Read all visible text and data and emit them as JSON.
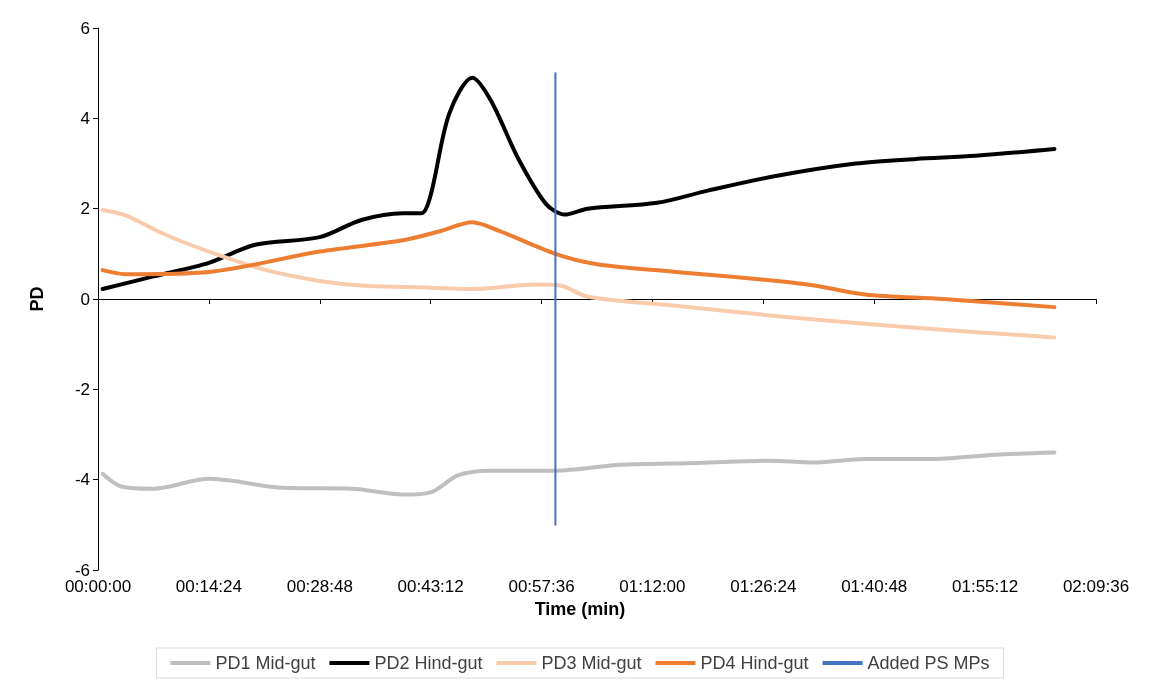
{
  "chart_data": {
    "type": "line",
    "xlabel": "Time (min)",
    "ylabel": "PD",
    "xlim": [
      0,
      2.16
    ],
    "xticks": [
      {
        "value": 0,
        "label": "00:00:00"
      },
      {
        "value": 0.24,
        "label": "00:14:24"
      },
      {
        "value": 0.48,
        "label": "00:28:48"
      },
      {
        "value": 0.72,
        "label": "00:43:12"
      },
      {
        "value": 0.96,
        "label": "00:57:36"
      },
      {
        "value": 1.2,
        "label": "01:12:00"
      },
      {
        "value": 1.44,
        "label": "01:26:24"
      },
      {
        "value": 1.68,
        "label": "01:40:48"
      },
      {
        "value": 1.92,
        "label": "01:55:12"
      },
      {
        "value": 2.16,
        "label": "02:09:36"
      }
    ],
    "ylim": [
      -6,
      6
    ],
    "yticks": [
      -6,
      -4,
      -2,
      0,
      2,
      4,
      6
    ],
    "legend": "bottom",
    "marker": "none",
    "line_style": "solid",
    "series": [
      {
        "name": "PD1 Mid-gut",
        "color": "#bfbfbf",
        "x": [
          0.01,
          0.05,
          0.12,
          0.24,
          0.4,
          0.55,
          0.66,
          0.72,
          0.78,
          0.85,
          0.99,
          1.13,
          1.3,
          1.45,
          1.55,
          1.66,
          1.81,
          1.94,
          2.07
        ],
        "values": [
          -3.87,
          -4.15,
          -4.2,
          -3.98,
          -4.18,
          -4.2,
          -4.33,
          -4.28,
          -3.9,
          -3.8,
          -3.8,
          -3.67,
          -3.63,
          -3.58,
          -3.62,
          -3.54,
          -3.54,
          -3.45,
          -3.4
        ]
      },
      {
        "name": "PD2 Hind-gut",
        "color": "#000000",
        "x": [
          0.01,
          0.12,
          0.24,
          0.34,
          0.48,
          0.57,
          0.66,
          0.7,
          0.72,
          0.76,
          0.81,
          0.85,
          0.91,
          0.97,
          1.01,
          1.06,
          1.21,
          1.32,
          1.47,
          1.64,
          1.77,
          1.9,
          2.07
        ],
        "values": [
          0.22,
          0.5,
          0.8,
          1.2,
          1.37,
          1.75,
          1.9,
          1.9,
          2.3,
          4.1,
          4.9,
          4.4,
          3.1,
          2.1,
          1.87,
          2.0,
          2.13,
          2.4,
          2.73,
          3.0,
          3.1,
          3.17,
          3.32
        ]
      },
      {
        "name": "PD3 Mid-gut",
        "color": "#f8cbad",
        "x": [
          0.01,
          0.06,
          0.14,
          0.24,
          0.36,
          0.48,
          0.57,
          0.72,
          0.81,
          0.95,
          1.0,
          1.06,
          1.25,
          1.47,
          1.72,
          2.07
        ],
        "values": [
          1.97,
          1.85,
          1.45,
          1.05,
          0.65,
          0.4,
          0.3,
          0.25,
          0.22,
          0.32,
          0.3,
          0.05,
          -0.15,
          -0.38,
          -0.6,
          -0.85
        ]
      },
      {
        "name": "PD4 Hind-gut",
        "color": "#ed7d31",
        "x": [
          0.01,
          0.06,
          0.24,
          0.48,
          0.66,
          0.74,
          0.81,
          0.87,
          0.99,
          1.08,
          1.25,
          1.47,
          1.55,
          1.66,
          1.83,
          2.07
        ],
        "values": [
          0.64,
          0.55,
          0.6,
          1.05,
          1.3,
          1.5,
          1.7,
          1.5,
          1.0,
          0.77,
          0.6,
          0.4,
          0.3,
          0.1,
          0.0,
          -0.18
        ]
      },
      {
        "name": "Added PS MPs",
        "color": "#4472c4",
        "x": [
          0.99,
          0.99
        ],
        "values": [
          -5,
          5
        ]
      }
    ]
  }
}
